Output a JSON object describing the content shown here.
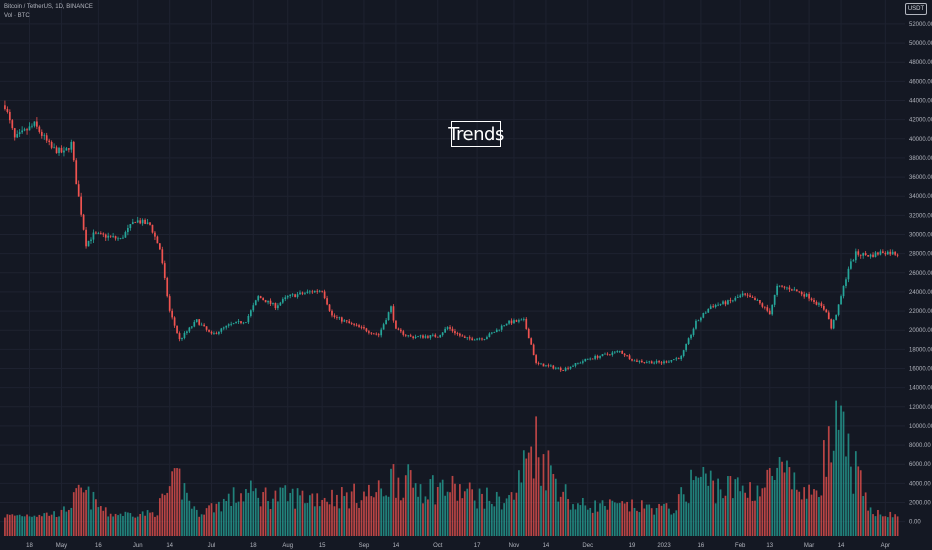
{
  "header": {
    "symbol_line": "Bitcoin / TetherUS, 1D, BINANCE",
    "volume_line": "Vol · BTC"
  },
  "price_axis": {
    "unit_label": "USDT"
  },
  "annotation": {
    "label": "Trends"
  },
  "colors": {
    "background": "#141823",
    "grid": "#1e2230",
    "up": "#26a69a",
    "down": "#ef5350",
    "axis_text": "#b2b5be",
    "annotation_border": "#ffffff"
  },
  "chart_data": {
    "type": "candlestick",
    "symbol": "Bitcoin / TetherUS",
    "interval": "1D",
    "exchange": "BINANCE",
    "ylim": [
      -1500,
      54500
    ],
    "price_ticks": [
      0,
      2000,
      4000,
      6000,
      8000,
      10000,
      12000,
      14000,
      16000,
      18000,
      20000,
      22000,
      24000,
      26000,
      28000,
      30000,
      32000,
      34000,
      36000,
      38000,
      40000,
      42000,
      44000,
      46000,
      48000,
      50000,
      52000
    ],
    "price_tick_labels": [
      "0.00",
      "2000.00",
      "4000.00",
      "6000.00",
      "8000.00",
      "10000.00",
      "12000.00",
      "14000.00",
      "16000.00",
      "18000.00",
      "20000.00",
      "22000.00",
      "24000.00",
      "26000.00",
      "28000.00",
      "30000.00",
      "32000.00",
      "34000.00",
      "36000.00",
      "38000.00",
      "40000.00",
      "42000.00",
      "44000.00",
      "46000.00",
      "48000.00",
      "50000.00",
      "52000.00"
    ],
    "time_ticks": [
      {
        "label": "18",
        "date": "2022-04-18"
      },
      {
        "label": "May",
        "date": "2022-05-01"
      },
      {
        "label": "16",
        "date": "2022-05-16"
      },
      {
        "label": "Jun",
        "date": "2022-06-01"
      },
      {
        "label": "14",
        "date": "2022-06-14"
      },
      {
        "label": "Jul",
        "date": "2022-07-01"
      },
      {
        "label": "18",
        "date": "2022-07-18"
      },
      {
        "label": "Aug",
        "date": "2022-08-01"
      },
      {
        "label": "15",
        "date": "2022-08-15"
      },
      {
        "label": "Sep",
        "date": "2022-09-01"
      },
      {
        "label": "14",
        "date": "2022-09-14"
      },
      {
        "label": "Oct",
        "date": "2022-10-01"
      },
      {
        "label": "17",
        "date": "2022-10-17"
      },
      {
        "label": "Nov",
        "date": "2022-11-01"
      },
      {
        "label": "14",
        "date": "2022-11-14"
      },
      {
        "label": "Dec",
        "date": "2022-12-01"
      },
      {
        "label": "19",
        "date": "2022-12-19"
      },
      {
        "label": "2023",
        "date": "2023-01-01"
      },
      {
        "label": "16",
        "date": "2023-01-16"
      },
      {
        "label": "Feb",
        "date": "2023-02-01"
      },
      {
        "label": "13",
        "date": "2023-02-13"
      },
      {
        "label": "Mar",
        "date": "2023-03-01"
      },
      {
        "label": "14",
        "date": "2023-03-14"
      },
      {
        "label": "Apr",
        "date": "2023-04-01"
      }
    ],
    "price_path": [
      {
        "date": "2022-04-08",
        "close": 43500
      },
      {
        "date": "2022-04-12",
        "close": 40000
      },
      {
        "date": "2022-04-20",
        "close": 41500
      },
      {
        "date": "2022-04-27",
        "close": 39000
      },
      {
        "date": "2022-05-02",
        "close": 38500
      },
      {
        "date": "2022-05-05",
        "close": 39500
      },
      {
        "date": "2022-05-07",
        "close": 35500
      },
      {
        "date": "2022-05-11",
        "close": 29000
      },
      {
        "date": "2022-05-14",
        "close": 30000
      },
      {
        "date": "2022-05-20",
        "close": 29800
      },
      {
        "date": "2022-05-25",
        "close": 29500
      },
      {
        "date": "2022-05-31",
        "close": 31500
      },
      {
        "date": "2022-06-06",
        "close": 31000
      },
      {
        "date": "2022-06-10",
        "close": 28500
      },
      {
        "date": "2022-06-14",
        "close": 22000
      },
      {
        "date": "2022-06-18",
        "close": 19000
      },
      {
        "date": "2022-06-25",
        "close": 21000
      },
      {
        "date": "2022-07-01",
        "close": 19500
      },
      {
        "date": "2022-07-08",
        "close": 20500
      },
      {
        "date": "2022-07-15",
        "close": 21000
      },
      {
        "date": "2022-07-20",
        "close": 23500
      },
      {
        "date": "2022-07-27",
        "close": 22500
      },
      {
        "date": "2022-08-01",
        "close": 23500
      },
      {
        "date": "2022-08-10",
        "close": 24000
      },
      {
        "date": "2022-08-15",
        "close": 24200
      },
      {
        "date": "2022-08-19",
        "close": 21500
      },
      {
        "date": "2022-08-28",
        "close": 20500
      },
      {
        "date": "2022-09-07",
        "close": 19500
      },
      {
        "date": "2022-09-12",
        "close": 22400
      },
      {
        "date": "2022-09-14",
        "close": 20000
      },
      {
        "date": "2022-09-20",
        "close": 19300
      },
      {
        "date": "2022-10-01",
        "close": 19400
      },
      {
        "date": "2022-10-05",
        "close": 20300
      },
      {
        "date": "2022-10-12",
        "close": 19100
      },
      {
        "date": "2022-10-20",
        "close": 19200
      },
      {
        "date": "2022-10-25",
        "close": 20000
      },
      {
        "date": "2022-10-29",
        "close": 20800
      },
      {
        "date": "2022-11-05",
        "close": 21000
      },
      {
        "date": "2022-11-08",
        "close": 18500
      },
      {
        "date": "2022-11-10",
        "close": 16500
      },
      {
        "date": "2022-11-21",
        "close": 15900
      },
      {
        "date": "2022-12-01",
        "close": 17000
      },
      {
        "date": "2022-12-14",
        "close": 17800
      },
      {
        "date": "2022-12-20",
        "close": 16800
      },
      {
        "date": "2022-12-31",
        "close": 16600
      },
      {
        "date": "2023-01-08",
        "close": 17200
      },
      {
        "date": "2023-01-14",
        "close": 20800
      },
      {
        "date": "2023-01-20",
        "close": 22500
      },
      {
        "date": "2023-01-28",
        "close": 23000
      },
      {
        "date": "2023-02-02",
        "close": 23700
      },
      {
        "date": "2023-02-08",
        "close": 23000
      },
      {
        "date": "2023-02-13",
        "close": 21800
      },
      {
        "date": "2023-02-16",
        "close": 24500
      },
      {
        "date": "2023-02-21",
        "close": 24400
      },
      {
        "date": "2023-03-01",
        "close": 23500
      },
      {
        "date": "2023-03-08",
        "close": 22000
      },
      {
        "date": "2023-03-10",
        "close": 20200
      },
      {
        "date": "2023-03-13",
        "close": 22500
      },
      {
        "date": "2023-03-17",
        "close": 26500
      },
      {
        "date": "2023-03-20",
        "close": 28000
      },
      {
        "date": "2023-03-26",
        "close": 27800
      },
      {
        "date": "2023-03-31",
        "close": 28200
      },
      {
        "date": "2023-04-06",
        "close": 28000
      }
    ],
    "volume_path": [
      {
        "date": "2022-04-08",
        "volume": 700
      },
      {
        "date": "2022-05-01",
        "volume": 1000
      },
      {
        "date": "2022-05-09",
        "volume": 3500
      },
      {
        "date": "2022-05-12",
        "volume": 3000
      },
      {
        "date": "2022-05-20",
        "volume": 900
      },
      {
        "date": "2022-06-08",
        "volume": 1000
      },
      {
        "date": "2022-06-13",
        "volume": 3500
      },
      {
        "date": "2022-06-18",
        "volume": 5000
      },
      {
        "date": "2022-06-25",
        "volume": 1000
      },
      {
        "date": "2022-07-15",
        "volume": 3500
      },
      {
        "date": "2022-07-25",
        "volume": 3000
      },
      {
        "date": "2022-08-10",
        "volume": 3000
      },
      {
        "date": "2022-08-25",
        "volume": 3000
      },
      {
        "date": "2022-09-08",
        "volume": 3500
      },
      {
        "date": "2022-09-13",
        "volume": 5500
      },
      {
        "date": "2022-09-20",
        "volume": 4500
      },
      {
        "date": "2022-10-05",
        "volume": 4000
      },
      {
        "date": "2022-10-12",
        "volume": 3500
      },
      {
        "date": "2022-10-25",
        "volume": 2500
      },
      {
        "date": "2022-11-01",
        "volume": 3000
      },
      {
        "date": "2022-11-09",
        "volume": 10000
      },
      {
        "date": "2022-11-14",
        "volume": 7000
      },
      {
        "date": "2022-11-25",
        "volume": 2000
      },
      {
        "date": "2022-12-20",
        "volume": 1800
      },
      {
        "date": "2023-01-05",
        "volume": 1500
      },
      {
        "date": "2023-01-14",
        "volume": 5500
      },
      {
        "date": "2023-01-25",
        "volume": 4000
      },
      {
        "date": "2023-02-10",
        "volume": 4000
      },
      {
        "date": "2023-02-16",
        "volume": 6000
      },
      {
        "date": "2023-03-01",
        "volume": 3000
      },
      {
        "date": "2023-03-10",
        "volume": 9000
      },
      {
        "date": "2023-03-13",
        "volume": 10500
      },
      {
        "date": "2023-03-20",
        "volume": 6000
      },
      {
        "date": "2023-03-25",
        "volume": 1500
      },
      {
        "date": "2023-04-06",
        "volume": 600
      }
    ]
  }
}
